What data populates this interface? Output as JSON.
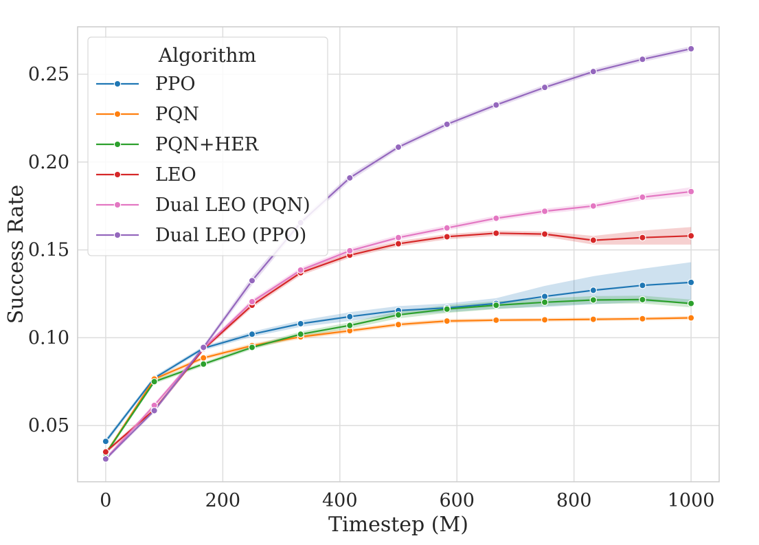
{
  "chart_data": {
    "type": "line",
    "title": "",
    "xlabel": "Timestep (M)",
    "ylabel": "Success Rate",
    "xlim": [
      -48,
      1048
    ],
    "ylim": [
      0.018,
      0.277
    ],
    "xticks": [
      0,
      200,
      400,
      600,
      800,
      1000
    ],
    "yticks": [
      0.05,
      0.1,
      0.15,
      0.2,
      0.25
    ],
    "xtick_labels": [
      "0",
      "200",
      "400",
      "600",
      "800",
      "1000"
    ],
    "ytick_labels": [
      "0.05",
      "0.10",
      "0.15",
      "0.20",
      "0.25"
    ],
    "grid": true,
    "legend_title": "Algorithm",
    "legend_placement": "top-left",
    "x": [
      0,
      83,
      167,
      250,
      333,
      417,
      500,
      583,
      667,
      750,
      833,
      917,
      1000
    ],
    "series": [
      {
        "name": "PPO",
        "color": "#1f77b4",
        "values": [
          0.041,
          0.077,
          0.094,
          0.102,
          0.108,
          0.112,
          0.1155,
          0.117,
          0.1195,
          0.1235,
          0.127,
          0.1298,
          0.1315
        ],
        "band": [
          0.0015,
          0.0012,
          0.0012,
          0.0015,
          0.0018,
          0.0025,
          0.0025,
          0.0025,
          0.003,
          0.006,
          0.008,
          0.0095,
          0.0115
        ]
      },
      {
        "name": "PQN",
        "color": "#ff7f0e",
        "values": [
          0.034,
          0.0765,
          0.0885,
          0.0955,
          0.1005,
          0.104,
          0.1075,
          0.1095,
          0.11,
          0.1102,
          0.1105,
          0.1108,
          0.1113
        ],
        "band": [
          0.0012,
          0.0012,
          0.0012,
          0.0012,
          0.0012,
          0.0012,
          0.0012,
          0.0012,
          0.001,
          0.001,
          0.001,
          0.001,
          0.001
        ]
      },
      {
        "name": "PQN+HER",
        "color": "#2ca02c",
        "values": [
          0.034,
          0.075,
          0.085,
          0.0945,
          0.102,
          0.107,
          0.113,
          0.1163,
          0.1185,
          0.1202,
          0.1215,
          0.1217,
          0.1195
        ],
        "band": [
          0.0012,
          0.0012,
          0.0012,
          0.0012,
          0.0015,
          0.0018,
          0.002,
          0.0022,
          0.0022,
          0.0022,
          0.0022,
          0.0022,
          0.0022
        ]
      },
      {
        "name": "LEO",
        "color": "#d62728",
        "values": [
          0.035,
          0.059,
          0.0935,
          0.1185,
          0.137,
          0.147,
          0.1535,
          0.1575,
          0.1595,
          0.159,
          0.1555,
          0.157,
          0.158
        ],
        "band": [
          0.0012,
          0.0012,
          0.0012,
          0.0015,
          0.0015,
          0.0015,
          0.0015,
          0.0015,
          0.0015,
          0.0015,
          0.0025,
          0.004,
          0.005
        ]
      },
      {
        "name": "Dual LEO (PQN)",
        "color": "#e377c2",
        "values": [
          0.031,
          0.0615,
          0.094,
          0.1205,
          0.1385,
          0.1495,
          0.157,
          0.1625,
          0.168,
          0.172,
          0.175,
          0.18,
          0.1832
        ],
        "band": [
          0.0012,
          0.0012,
          0.0012,
          0.0015,
          0.0015,
          0.0015,
          0.0015,
          0.0015,
          0.0015,
          0.0015,
          0.0015,
          0.0018,
          0.0025
        ]
      },
      {
        "name": "Dual LEO (PPO)",
        "color": "#9467bd",
        "values": [
          0.031,
          0.0585,
          0.0945,
          0.1325,
          0.1655,
          0.191,
          0.2085,
          0.2215,
          0.2325,
          0.2425,
          0.2515,
          0.2585,
          0.2645
        ],
        "band": [
          0.0012,
          0.0012,
          0.0012,
          0.0025,
          0.0018,
          0.0018,
          0.0015,
          0.0015,
          0.0015,
          0.0015,
          0.0015,
          0.0015,
          0.0015
        ]
      }
    ]
  }
}
